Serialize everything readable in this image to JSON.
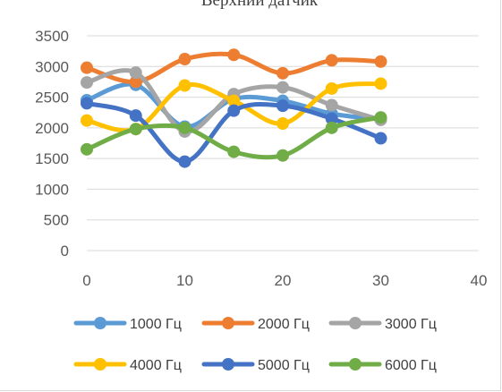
{
  "chart_data": {
    "type": "scatter",
    "title": "Верхний датчик",
    "xlabel": "",
    "ylabel": "",
    "xlim": [
      0,
      40
    ],
    "ylim": [
      0,
      3500
    ],
    "x_ticks": [
      "0",
      "10",
      "20",
      "30",
      "40"
    ],
    "y_ticks": [
      "0",
      "500",
      "1000",
      "1500",
      "2000",
      "2500",
      "3000",
      "3500"
    ],
    "grid": true,
    "legend_position": "bottom",
    "smooth_lines": true,
    "x": [
      0,
      5,
      10,
      15,
      20,
      25,
      30
    ],
    "series": [
      {
        "name": "1000 Гц",
        "color": "#5B9BD5",
        "values": [
          2450,
          2700,
          2020,
          2470,
          2440,
          2230,
          2140
        ]
      },
      {
        "name": "2000 Гц",
        "color": "#ED7D31",
        "values": [
          2980,
          2750,
          3120,
          3190,
          2890,
          3100,
          3080
        ]
      },
      {
        "name": "3000 Гц",
        "color": "#A5A5A5",
        "values": [
          2740,
          2900,
          1940,
          2550,
          2660,
          2370,
          2130
        ]
      },
      {
        "name": "4000 Гц",
        "color": "#FFC000",
        "values": [
          2120,
          1980,
          2690,
          2440,
          2070,
          2640,
          2720
        ]
      },
      {
        "name": "5000 Гц",
        "color": "#4472C4",
        "values": [
          2400,
          2200,
          1450,
          2280,
          2360,
          2150,
          1830
        ]
      },
      {
        "name": "6000 Гц",
        "color": "#70AD47",
        "values": [
          1650,
          1980,
          2000,
          1610,
          1550,
          2000,
          2170
        ]
      }
    ]
  }
}
